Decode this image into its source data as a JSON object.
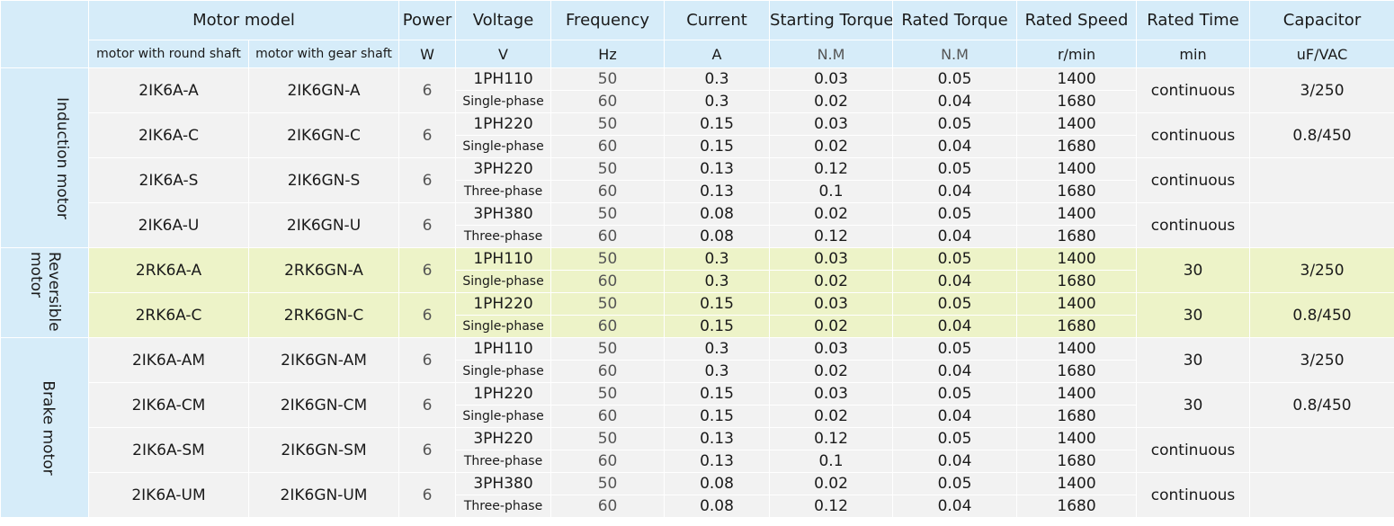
{
  "header": {
    "motor_model": "Motor model",
    "power": "Power",
    "voltage": "Voltage",
    "frequency": "Frequency",
    "current": "Current",
    "starting_torque": "Starting Torque",
    "rated_torque": "Rated Torque",
    "rated_speed": "Rated Speed",
    "rated_time": "Rated Time",
    "capacitor": "Capacitor"
  },
  "subheader": {
    "round_shaft": "motor with round shaft",
    "gear_shaft": "motor with gear shaft",
    "power_unit": "W",
    "voltage_unit": "V",
    "frequency_unit": "Hz",
    "current_unit": "A",
    "starting_torque_unit": "N.M",
    "rated_torque_unit": "N.M",
    "rated_speed_unit": "r/min",
    "rated_time_unit": "min",
    "capacitor_unit": "uF/VAC"
  },
  "groups": [
    {
      "label": "Induction motor",
      "models": [
        {
          "round": "2IK6A-A",
          "gear": "2IK6GN-A",
          "power": "6",
          "voltage": "1PH110",
          "phase": "Single-phase",
          "rows": [
            {
              "freq": "50",
              "current": "0.3",
              "start_torque": "0.03",
              "rated_torque": "0.05",
              "speed": "1400"
            },
            {
              "freq": "60",
              "current": "0.3",
              "start_torque": "0.02",
              "rated_torque": "0.04",
              "speed": "1680"
            }
          ],
          "time": "continuous",
          "capacitor": "3/250"
        },
        {
          "round": "2IK6A-C",
          "gear": "2IK6GN-C",
          "power": "6",
          "voltage": "1PH220",
          "phase": "Single-phase",
          "rows": [
            {
              "freq": "50",
              "current": "0.15",
              "start_torque": "0.03",
              "rated_torque": "0.05",
              "speed": "1400"
            },
            {
              "freq": "60",
              "current": "0.15",
              "start_torque": "0.02",
              "rated_torque": "0.04",
              "speed": "1680"
            }
          ],
          "time": "continuous",
          "capacitor": "0.8/450"
        },
        {
          "round": "2IK6A-S",
          "gear": "2IK6GN-S",
          "power": "6",
          "voltage": "3PH220",
          "phase": "Three-phase",
          "rows": [
            {
              "freq": "50",
              "current": "0.13",
              "start_torque": "0.12",
              "rated_torque": "0.05",
              "speed": "1400"
            },
            {
              "freq": "60",
              "current": "0.13",
              "start_torque": "0.1",
              "rated_torque": "0.04",
              "speed": "1680"
            }
          ],
          "time": "continuous",
          "capacitor": ""
        },
        {
          "round": "2IK6A-U",
          "gear": "2IK6GN-U",
          "power": "6",
          "voltage": "3PH380",
          "phase": "Three-phase",
          "rows": [
            {
              "freq": "50",
              "current": "0.08",
              "start_torque": "0.02",
              "rated_torque": "0.05",
              "speed": "1400"
            },
            {
              "freq": "60",
              "current": "0.08",
              "start_torque": "0.12",
              "rated_torque": "0.04",
              "speed": "1680"
            }
          ],
          "time": "continuous",
          "capacitor": ""
        }
      ]
    },
    {
      "label": "Reversible motor",
      "models": [
        {
          "round": "2RK6A-A",
          "gear": "2RK6GN-A",
          "power": "6",
          "voltage": "1PH110",
          "phase": "Single-phase",
          "rows": [
            {
              "freq": "50",
              "current": "0.3",
              "start_torque": "0.03",
              "rated_torque": "0.05",
              "speed": "1400"
            },
            {
              "freq": "60",
              "current": "0.3",
              "start_torque": "0.02",
              "rated_torque": "0.04",
              "speed": "1680"
            }
          ],
          "time": "30",
          "capacitor": "3/250"
        },
        {
          "round": "2RK6A-C",
          "gear": "2RK6GN-C",
          "power": "6",
          "voltage": "1PH220",
          "phase": "Single-phase",
          "rows": [
            {
              "freq": "50",
              "current": "0.15",
              "start_torque": "0.03",
              "rated_torque": "0.05",
              "speed": "1400"
            },
            {
              "freq": "60",
              "current": "0.15",
              "start_torque": "0.02",
              "rated_torque": "0.04",
              "speed": "1680"
            }
          ],
          "time": "30",
          "capacitor": "0.8/450"
        }
      ]
    },
    {
      "label": "Brake motor",
      "models": [
        {
          "round": "2IK6A-AM",
          "gear": "2IK6GN-AM",
          "power": "6",
          "voltage": "1PH110",
          "phase": "Single-phase",
          "rows": [
            {
              "freq": "50",
              "current": "0.3",
              "start_torque": "0.03",
              "rated_torque": "0.05",
              "speed": "1400"
            },
            {
              "freq": "60",
              "current": "0.3",
              "start_torque": "0.02",
              "rated_torque": "0.04",
              "speed": "1680"
            }
          ],
          "time": "30",
          "capacitor": "3/250"
        },
        {
          "round": "2IK6A-CM",
          "gear": "2IK6GN-CM",
          "power": "6",
          "voltage": "1PH220",
          "phase": "Single-phase",
          "rows": [
            {
              "freq": "50",
              "current": "0.15",
              "start_torque": "0.03",
              "rated_torque": "0.05",
              "speed": "1400"
            },
            {
              "freq": "60",
              "current": "0.15",
              "start_torque": "0.02",
              "rated_torque": "0.04",
              "speed": "1680"
            }
          ],
          "time": "30",
          "capacitor": "0.8/450"
        },
        {
          "round": "2IK6A-SM",
          "gear": "2IK6GN-SM",
          "power": "6",
          "voltage": "3PH220",
          "phase": "Three-phase",
          "rows": [
            {
              "freq": "50",
              "current": "0.13",
              "start_torque": "0.12",
              "rated_torque": "0.05",
              "speed": "1400"
            },
            {
              "freq": "60",
              "current": "0.13",
              "start_torque": "0.1",
              "rated_torque": "0.04",
              "speed": "1680"
            }
          ],
          "time": "continuous",
          "capacitor": ""
        },
        {
          "round": "2IK6A-UM",
          "gear": "2IK6GN-UM",
          "power": "6",
          "voltage": "3PH380",
          "phase": "Three-phase",
          "rows": [
            {
              "freq": "50",
              "current": "0.08",
              "start_torque": "0.02",
              "rated_torque": "0.05",
              "speed": "1400"
            },
            {
              "freq": "60",
              "current": "0.08",
              "start_torque": "0.12",
              "rated_torque": "0.04",
              "speed": "1680"
            }
          ],
          "time": "continuous",
          "capacitor": ""
        }
      ]
    }
  ]
}
